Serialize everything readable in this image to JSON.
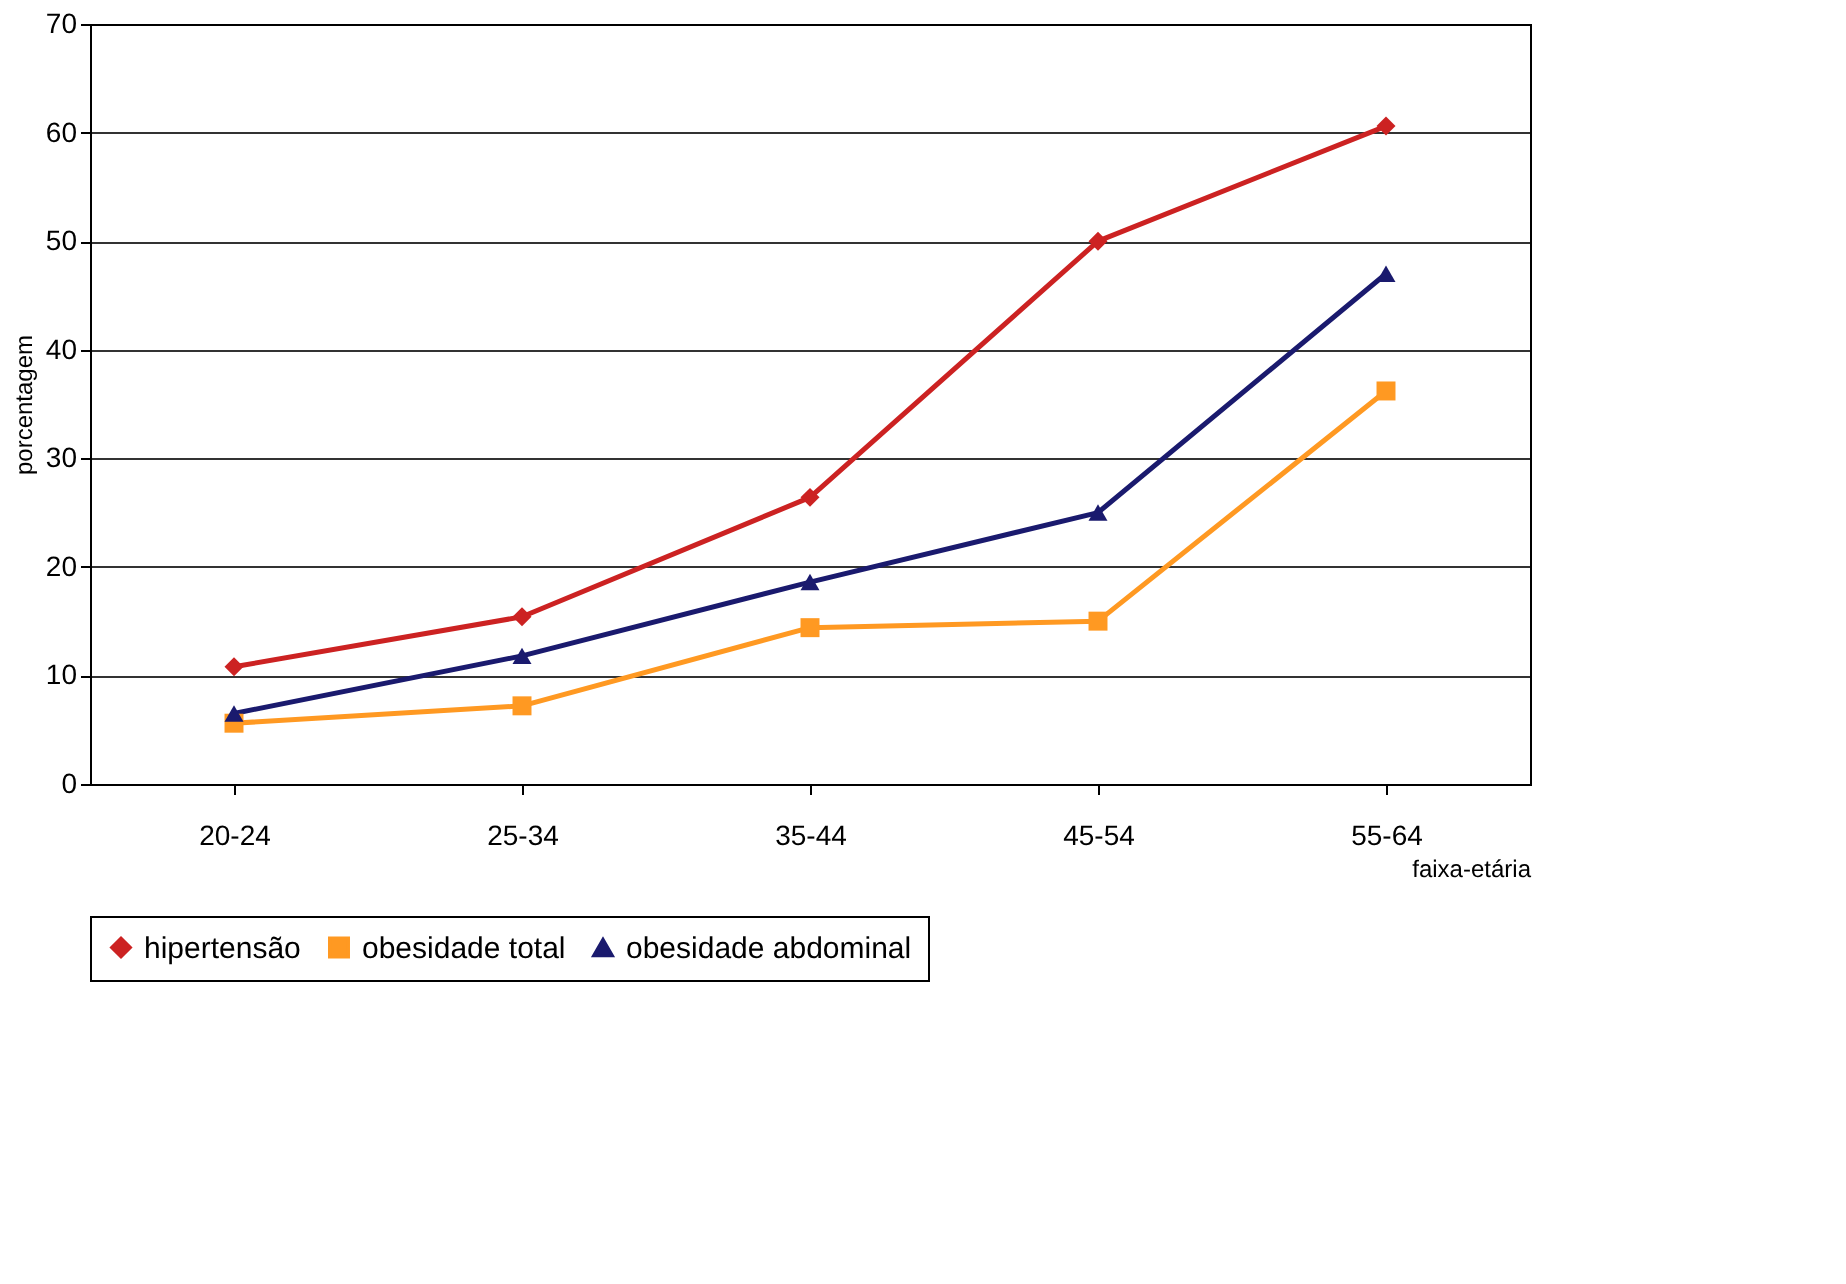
{
  "chart_data": {
    "type": "line",
    "xlabel": "faixa-etária",
    "ylabel": "porcentagem",
    "categories": [
      "20-24",
      "25-34",
      "35-44",
      "45-54",
      "55-64"
    ],
    "ylim": [
      0,
      70
    ],
    "yticks": [
      0,
      10,
      20,
      30,
      40,
      50,
      60,
      70
    ],
    "grid": "y",
    "legend": "bottom",
    "line_style": "solid",
    "series": [
      {
        "name": "hipertensão",
        "color": "#cc2222",
        "marker": "diamond",
        "values": [
          10.8,
          15.4,
          26.4,
          50,
          60.6
        ]
      },
      {
        "name": "obesidade total",
        "color": "#ff9922",
        "marker": "square",
        "values": [
          5.6,
          7.2,
          14.4,
          15,
          36.2
        ]
      },
      {
        "name": "obesidade abdominal",
        "color": "#1a1a6e",
        "marker": "triangle",
        "values": [
          6.5,
          11.8,
          18.6,
          25,
          47
        ]
      }
    ]
  }
}
